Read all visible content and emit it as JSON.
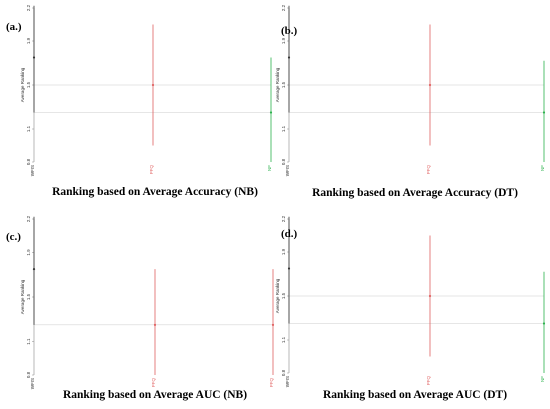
{
  "colors": {
    "WFIS": "#333333",
    "PFQ": "#e06060",
    "NF": "#2bb24c",
    "ref": "#cccccc"
  },
  "chart_data": [
    {
      "type": "scatter",
      "panel_label": "(a.)",
      "title": "Ranking based on Average Accuracy (NB)",
      "ylabel": "Average Ranking",
      "ylim": [
        0.8,
        2.2
      ],
      "yticks": [
        0.8,
        1.1,
        1.5,
        1.9,
        2.2
      ],
      "reference_lines": [
        1.5,
        1.25
      ],
      "categories": [
        "WFIS",
        "PFQ",
        "NF"
      ],
      "series": [
        {
          "label": "WFIS",
          "value": 1.75,
          "lower": 1.25,
          "upper": 2.22
        },
        {
          "label": "PFQ",
          "value": 1.5,
          "lower": 0.95,
          "upper": 2.05
        },
        {
          "label": "NF",
          "value": 1.25,
          "lower": 0.8,
          "upper": 1.75
        }
      ]
    },
    {
      "type": "scatter",
      "panel_label": "(b.)",
      "title": "Ranking based on Average Accuracy (DT)",
      "ylabel": "Average Ranking",
      "ylim": [
        0.8,
        2.2
      ],
      "yticks": [
        0.8,
        1.1,
        1.5,
        1.9,
        2.2
      ],
      "reference_lines": [
        1.5,
        1.25
      ],
      "categories": [
        "WFIS",
        "PFQ",
        "NF"
      ],
      "series": [
        {
          "label": "WFIS",
          "value": 1.75,
          "lower": 1.25,
          "upper": 2.22
        },
        {
          "label": "PFQ",
          "value": 1.5,
          "lower": 0.95,
          "upper": 2.05
        },
        {
          "label": "NF",
          "value": 1.25,
          "lower": 0.8,
          "upper": 1.72
        }
      ]
    },
    {
      "type": "scatter",
      "panel_label": "(c.)",
      "title": "Ranking based on Average AUC (NB)",
      "ylabel": "Average Ranking",
      "ylim": [
        0.8,
        2.2
      ],
      "yticks": [
        0.8,
        1.1,
        1.5,
        1.9,
        2.2
      ],
      "reference_lines": [
        1.25
      ],
      "categories": [
        "WFIS",
        "PFQ",
        "PFQ"
      ],
      "series": [
        {
          "label": "WFIS",
          "value": 1.75,
          "lower": 1.25,
          "upper": 2.22
        },
        {
          "label": "PFQ",
          "value": 1.25,
          "lower": 0.8,
          "upper": 1.75
        },
        {
          "label": "PFQ",
          "value": 1.25,
          "lower": 0.8,
          "upper": 1.75
        }
      ]
    },
    {
      "type": "scatter",
      "panel_label": "(d.)",
      "title": "Ranking based on Average AUC (DT)",
      "ylabel": "Average Ranking",
      "ylim": [
        0.8,
        2.2
      ],
      "yticks": [
        0.8,
        1.1,
        1.5,
        1.9,
        2.2
      ],
      "reference_lines": [
        1.5,
        1.25
      ],
      "categories": [
        "WFIS",
        "PFQ",
        "NF"
      ],
      "series": [
        {
          "label": "WFIS",
          "value": 1.75,
          "lower": 1.25,
          "upper": 2.22
        },
        {
          "label": "PFQ",
          "value": 1.5,
          "lower": 0.95,
          "upper": 2.05
        },
        {
          "label": "NF",
          "value": 1.25,
          "lower": 0.8,
          "upper": 1.72
        }
      ]
    }
  ]
}
